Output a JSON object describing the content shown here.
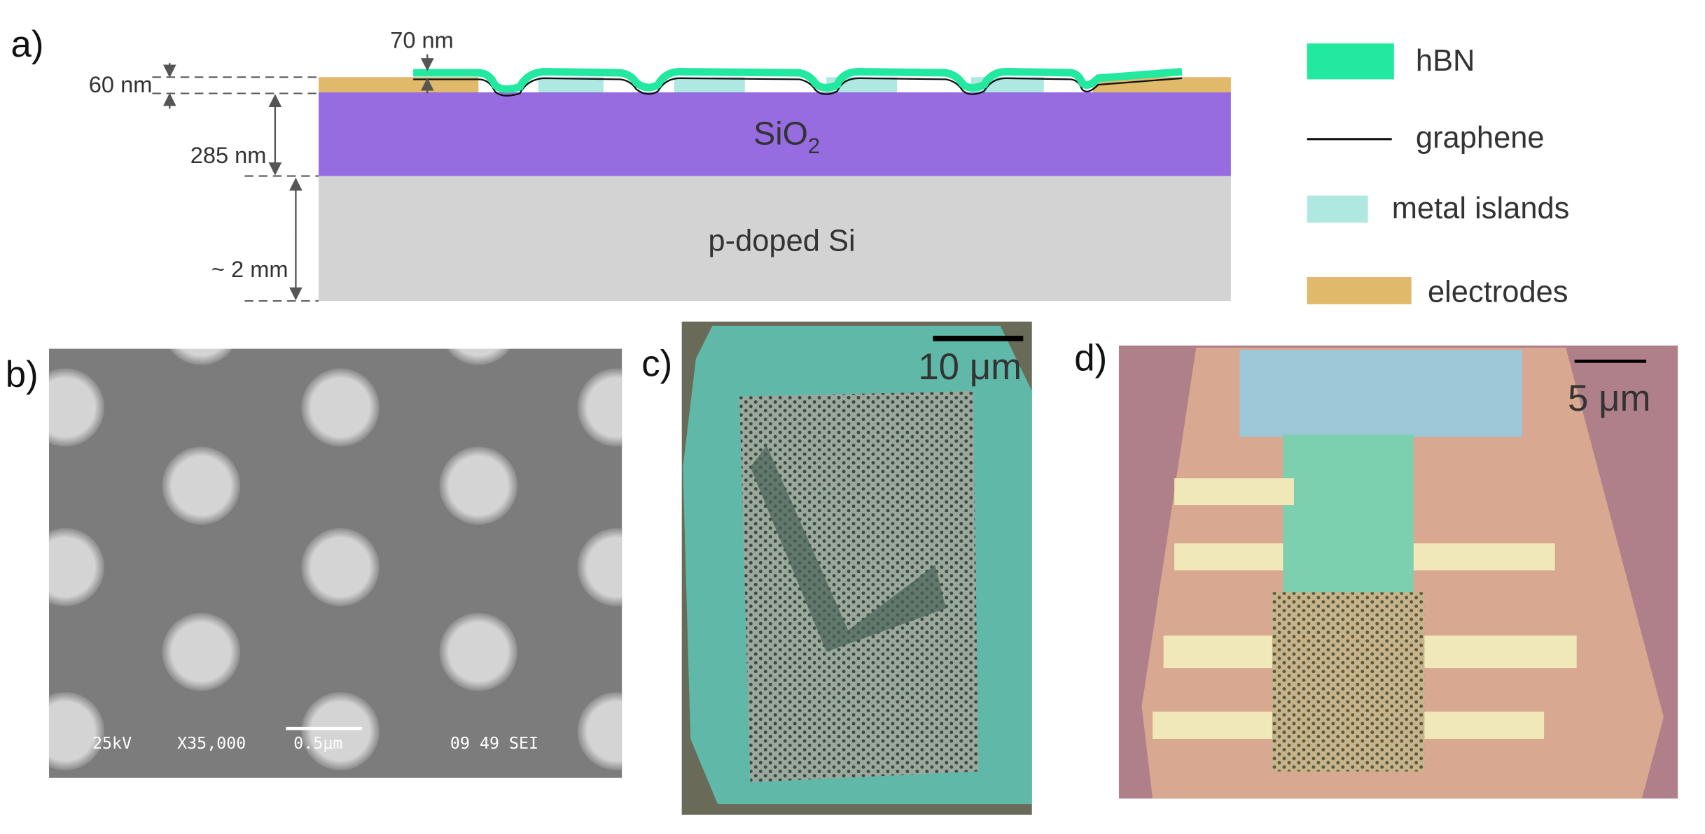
{
  "panels": {
    "a": {
      "label": "a)",
      "dims": [
        "70 nm",
        "60 nm",
        "285 nm",
        "~ 2 mm"
      ],
      "sio2": "SiO",
      "sio2_sub": "2",
      "si": "p-doped Si",
      "legend": [
        "hBN",
        "graphene",
        "metal islands",
        "electrodes"
      ]
    },
    "b": {
      "label": "b)",
      "sem_info": [
        "25kV",
        "X35,000",
        "0.5μm",
        "09 49 SEI"
      ]
    },
    "c": {
      "label": "c)",
      "scale": "10 μm"
    },
    "d": {
      "label": "d)",
      "scale": "5 μm"
    }
  }
}
